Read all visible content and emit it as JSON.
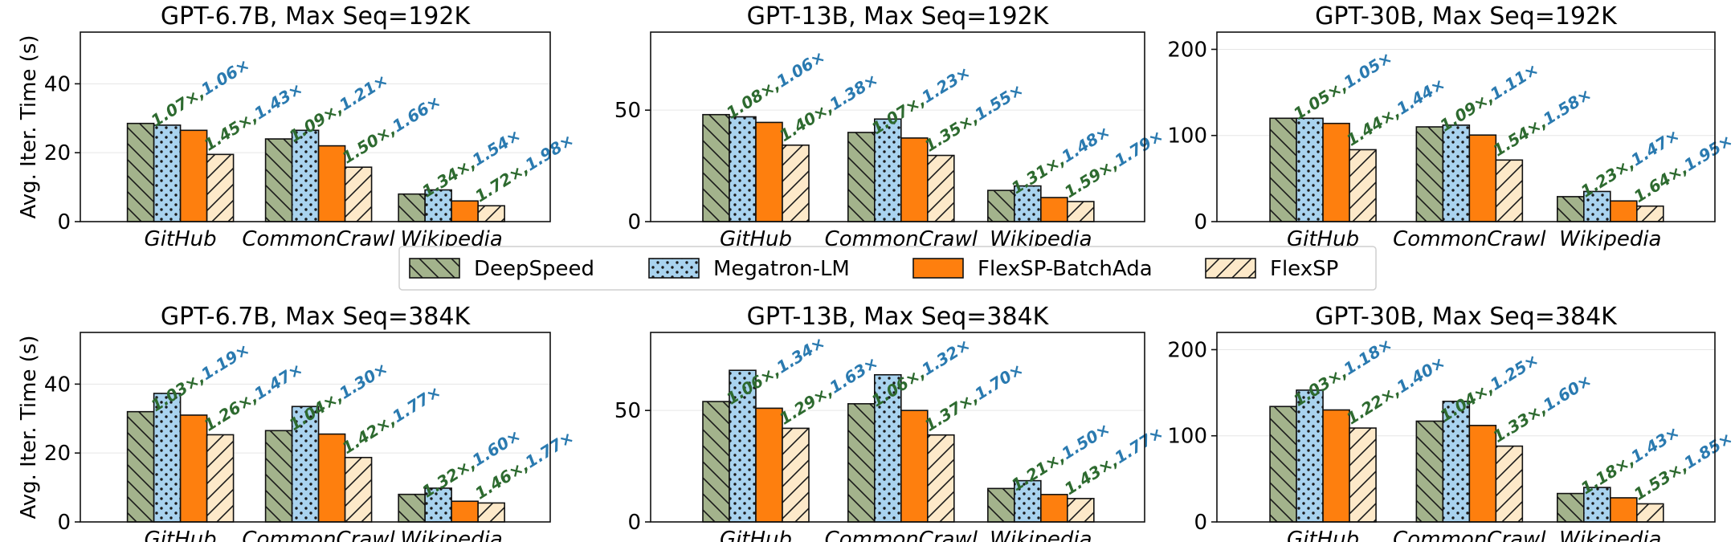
{
  "colors": {
    "deepspeed": "#a3b38c",
    "megatron": "#a9d3ef",
    "flexsp_batchada": "#fe7f0e",
    "flexsp": "#fde9c9",
    "ann_green": "#2d6a2f",
    "ann_blue": "#2a7ab0"
  },
  "legend": {
    "items": [
      {
        "label": "DeepSpeed",
        "key": "deepspeed",
        "pattern": "back"
      },
      {
        "label": "Megatron-LM",
        "key": "megatron",
        "pattern": "dots"
      },
      {
        "label": "FlexSP-BatchAda",
        "key": "flexsp_batchada",
        "pattern": "none"
      },
      {
        "label": "FlexSP",
        "key": "flexsp",
        "pattern": "fwd"
      }
    ]
  },
  "chart_data": [
    {
      "type": "bar",
      "title": "GPT-6.7B, Max Seq=192K",
      "ylabel": "Avg. Iter. Time (s)",
      "ylim": [
        0,
        55
      ],
      "yticks": [
        0,
        20,
        40
      ],
      "categories": [
        "GitHub",
        "CommonCrawl",
        "Wikipedia"
      ],
      "series": [
        {
          "name": "DeepSpeed",
          "values": [
            28.5,
            24,
            8
          ]
        },
        {
          "name": "Megatron-LM",
          "values": [
            28,
            26.5,
            9.2
          ]
        },
        {
          "name": "FlexSP-BatchAda",
          "values": [
            26.5,
            22,
            6
          ]
        },
        {
          "name": "FlexSP",
          "values": [
            19.5,
            15.8,
            4.6
          ]
        }
      ],
      "annotations": [
        [
          "1.07×,",
          "1.06×",
          "1.45×,",
          "1.43×"
        ],
        [
          "1.09×,",
          "1.21×",
          "1.50×,",
          "1.66×"
        ],
        [
          "1.34×,",
          "1.54×",
          "1.72×,",
          "1.98×"
        ]
      ]
    },
    {
      "type": "bar",
      "title": "GPT-13B, Max Seq=192K",
      "ylabel": "",
      "ylim": [
        0,
        85
      ],
      "yticks": [
        0,
        50
      ],
      "categories": [
        "GitHub",
        "CommonCrawl",
        "Wikipedia"
      ],
      "series": [
        {
          "name": "DeepSpeed",
          "values": [
            48,
            40,
            14
          ]
        },
        {
          "name": "Megatron-LM",
          "values": [
            47,
            46,
            16
          ]
        },
        {
          "name": "FlexSP-BatchAda",
          "values": [
            44.5,
            37.5,
            10.8
          ]
        },
        {
          "name": "FlexSP",
          "values": [
            34.3,
            29.7,
            9
          ]
        }
      ],
      "annotations": [
        [
          "1.08×,",
          "1.06×",
          "1.40×,",
          "1.38×"
        ],
        [
          "1.07×,",
          "1.23×",
          "1.35×,",
          "1.55×"
        ],
        [
          "1.31×,",
          "1.48×",
          "1.59×,",
          "1.79×"
        ]
      ]
    },
    {
      "type": "bar",
      "title": "GPT-30B, Max Seq=192K",
      "ylabel": "",
      "ylim": [
        0,
        220
      ],
      "yticks": [
        0,
        100,
        200
      ],
      "categories": [
        "GitHub",
        "CommonCrawl",
        "Wikipedia"
      ],
      "series": [
        {
          "name": "DeepSpeed",
          "values": [
            120,
            110,
            29
          ]
        },
        {
          "name": "Megatron-LM",
          "values": [
            120,
            112,
            35
          ]
        },
        {
          "name": "FlexSP-BatchAda",
          "values": [
            114,
            100.5,
            24
          ]
        },
        {
          "name": "FlexSP",
          "values": [
            83.5,
            71.5,
            18
          ]
        }
      ],
      "annotations": [
        [
          "1.05×,",
          "1.05×",
          "1.44×,",
          "1.44×"
        ],
        [
          "1.09×,",
          "1.11×",
          "1.54×,",
          "1.58×"
        ],
        [
          "1.23×,",
          "1.47×",
          "1.64×,",
          "1.95×"
        ]
      ]
    },
    {
      "type": "bar",
      "title": "GPT-6.7B, Max Seq=384K",
      "ylabel": "Avg. Iter. Time (s)",
      "ylim": [
        0,
        55
      ],
      "yticks": [
        0,
        20,
        40
      ],
      "categories": [
        "GitHub",
        "CommonCrawl",
        "Wikipedia"
      ],
      "series": [
        {
          "name": "DeepSpeed",
          "values": [
            32,
            26.5,
            8
          ]
        },
        {
          "name": "Megatron-LM",
          "values": [
            37.3,
            33.5,
            9.8
          ]
        },
        {
          "name": "FlexSP-BatchAda",
          "values": [
            31,
            25.5,
            6
          ]
        },
        {
          "name": "FlexSP",
          "values": [
            25.3,
            18.7,
            5.5
          ]
        }
      ],
      "annotations": [
        [
          "1.03×,",
          "1.19×",
          "1.26×,",
          "1.47×"
        ],
        [
          "1.04×,",
          "1.30×",
          "1.42×,",
          "1.77×"
        ],
        [
          "1.32×,",
          "1.60×",
          "1.46×,",
          "1.77×"
        ]
      ]
    },
    {
      "type": "bar",
      "title": "GPT-13B, Max Seq=384K",
      "ylabel": "",
      "ylim": [
        0,
        85
      ],
      "yticks": [
        0,
        50
      ],
      "categories": [
        "GitHub",
        "CommonCrawl",
        "Wikipedia"
      ],
      "series": [
        {
          "name": "DeepSpeed",
          "values": [
            54,
            53,
            15
          ]
        },
        {
          "name": "Megatron-LM",
          "values": [
            68,
            66,
            18.5
          ]
        },
        {
          "name": "FlexSP-BatchAda",
          "values": [
            51,
            50,
            12.3
          ]
        },
        {
          "name": "FlexSP",
          "values": [
            42,
            39,
            10.5
          ]
        }
      ],
      "annotations": [
        [
          "1.06×,",
          "1.34×",
          "1.29×,",
          "1.63×"
        ],
        [
          "1.06×,",
          "1.32×",
          "1.37×,",
          "1.70×"
        ],
        [
          "1.21×,",
          "1.50×",
          "1.43×,",
          "1.77×"
        ]
      ]
    },
    {
      "type": "bar",
      "title": "GPT-30B, Max Seq=384K",
      "ylabel": "",
      "ylim": [
        0,
        220
      ],
      "yticks": [
        0,
        100,
        200
      ],
      "categories": [
        "GitHub",
        "CommonCrawl",
        "Wikipedia"
      ],
      "series": [
        {
          "name": "DeepSpeed",
          "values": [
            134,
            117,
            33
          ]
        },
        {
          "name": "Megatron-LM",
          "values": [
            153,
            140,
            40
          ]
        },
        {
          "name": "FlexSP-BatchAda",
          "values": [
            130,
            112,
            28
          ]
        },
        {
          "name": "FlexSP",
          "values": [
            109,
            88,
            21
          ]
        }
      ],
      "annotations": [
        [
          "1.03×,",
          "1.18×",
          "1.22×,",
          "1.40×"
        ],
        [
          "1.04×,",
          "1.25×",
          "1.33×,",
          "1.60×"
        ],
        [
          "1.18×,",
          "1.43×",
          "1.53×,",
          "1.85×"
        ]
      ]
    }
  ]
}
